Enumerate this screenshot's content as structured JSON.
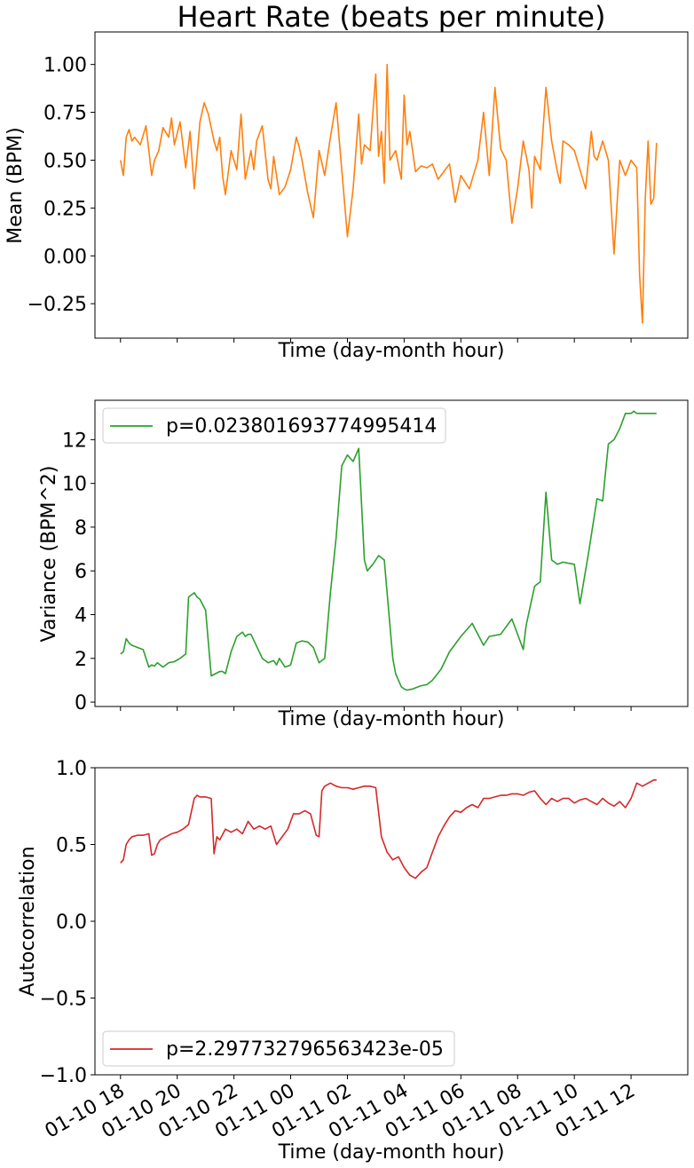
{
  "figure": {
    "title": "Heart Rate (beats per minute)",
    "shared_xlabel": "Time (day-month hour)"
  },
  "chart_data": [
    {
      "type": "line",
      "ylabel": "Mean (BPM)",
      "xlabel": "Time (day-month hour)",
      "ylim": [
        -0.43,
        1.17
      ],
      "yticks": [
        -0.25,
        0.0,
        0.25,
        0.5,
        0.75,
        1.0
      ],
      "ytick_labels": [
        "−0.25",
        "0.00",
        "0.25",
        "0.50",
        "0.75",
        "1.00"
      ],
      "xlim": [
        -0.9,
        20.0
      ],
      "x_tick_labels_shown": false,
      "grid": false,
      "legend": null,
      "series": [
        {
          "color": "#ff7f0e",
          "x": [
            0.0,
            0.1,
            0.2,
            0.3,
            0.4,
            0.5,
            0.7,
            0.9,
            1.1,
            1.2,
            1.35,
            1.5,
            1.7,
            1.8,
            1.9,
            2.1,
            2.3,
            2.45,
            2.6,
            2.8,
            2.95,
            3.1,
            3.3,
            3.4,
            3.5,
            3.6,
            3.7,
            3.9,
            4.1,
            4.25,
            4.4,
            4.6,
            4.7,
            4.8,
            5.0,
            5.2,
            5.3,
            5.4,
            5.6,
            5.8,
            6.0,
            6.2,
            6.3,
            6.4,
            6.6,
            6.8,
            7.0,
            7.2,
            7.4,
            7.6,
            7.8,
            8.0,
            8.2,
            8.4,
            8.5,
            8.6,
            8.8,
            9.0,
            9.1,
            9.2,
            9.3,
            9.4,
            9.5,
            9.7,
            9.9,
            10.0,
            10.1,
            10.2,
            10.4,
            10.6,
            10.8,
            11.0,
            11.2,
            11.4,
            11.6,
            11.8,
            12.0,
            12.3,
            12.6,
            12.8,
            13.0,
            13.2,
            13.4,
            13.6,
            13.8,
            14.0,
            14.2,
            14.4,
            14.5,
            14.6,
            14.8,
            15.0,
            15.2,
            15.4,
            15.5,
            15.6,
            15.8,
            16.0,
            16.2,
            16.4,
            16.6,
            16.7,
            16.8,
            17.0,
            17.2,
            17.4,
            17.6,
            17.8,
            18.0,
            18.2,
            18.3,
            18.4,
            18.5,
            18.6,
            18.7,
            18.8,
            18.9
          ],
          "y": [
            0.5,
            0.42,
            0.62,
            0.66,
            0.6,
            0.62,
            0.58,
            0.68,
            0.42,
            0.5,
            0.55,
            0.67,
            0.62,
            0.72,
            0.58,
            0.7,
            0.46,
            0.65,
            0.35,
            0.7,
            0.8,
            0.74,
            0.6,
            0.55,
            0.62,
            0.42,
            0.32,
            0.55,
            0.45,
            0.74,
            0.4,
            0.55,
            0.45,
            0.6,
            0.68,
            0.4,
            0.35,
            0.52,
            0.32,
            0.36,
            0.45,
            0.62,
            0.57,
            0.5,
            0.33,
            0.2,
            0.55,
            0.42,
            0.62,
            0.8,
            0.45,
            0.1,
            0.35,
            0.74,
            0.48,
            0.58,
            0.55,
            0.95,
            0.52,
            0.65,
            0.38,
            1.0,
            0.5,
            0.55,
            0.4,
            0.84,
            0.58,
            0.65,
            0.44,
            0.47,
            0.46,
            0.48,
            0.4,
            0.44,
            0.48,
            0.28,
            0.42,
            0.35,
            0.5,
            0.75,
            0.42,
            0.88,
            0.56,
            0.5,
            0.17,
            0.35,
            0.6,
            0.45,
            0.25,
            0.52,
            0.45,
            0.88,
            0.6,
            0.44,
            0.38,
            0.6,
            0.58,
            0.55,
            0.45,
            0.35,
            0.65,
            0.52,
            0.5,
            0.6,
            0.5,
            0.01,
            0.5,
            0.42,
            0.5,
            0.46,
            -0.1,
            -0.35,
            0.3,
            0.6,
            0.27,
            0.3,
            0.59
          ]
        }
      ]
    },
    {
      "type": "line",
      "ylabel": "Variance (BPM^2)",
      "xlabel": "Time (day-month hour)",
      "ylim": [
        -0.2,
        13.8
      ],
      "yticks": [
        0,
        2,
        4,
        6,
        8,
        10,
        12
      ],
      "ytick_labels": [
        "0",
        "2",
        "4",
        "6",
        "8",
        "10",
        "12"
      ],
      "xlim": [
        -0.9,
        20.0
      ],
      "x_tick_labels_shown": false,
      "grid": false,
      "legend": "upper left",
      "series": [
        {
          "name": "p=0.023801693774995414",
          "color": "#2ca02c",
          "x": [
            0.0,
            0.1,
            0.2,
            0.3,
            0.4,
            0.5,
            0.6,
            0.8,
            1.0,
            1.1,
            1.2,
            1.3,
            1.5,
            1.7,
            1.9,
            2.1,
            2.3,
            2.4,
            2.6,
            2.7,
            2.8,
            3.0,
            3.2,
            3.5,
            3.6,
            3.7,
            3.9,
            4.1,
            4.3,
            4.4,
            4.5,
            4.6,
            5.0,
            5.2,
            5.4,
            5.5,
            5.6,
            5.8,
            6.0,
            6.2,
            6.4,
            6.6,
            6.8,
            7.0,
            7.2,
            7.4,
            7.6,
            7.8,
            8.0,
            8.2,
            8.4,
            8.6,
            8.7,
            8.9,
            9.1,
            9.3,
            9.4,
            9.5,
            9.6,
            9.7,
            9.8,
            9.9,
            10.0,
            10.1,
            10.3,
            10.5,
            10.6,
            10.8,
            11.0,
            11.3,
            11.6,
            12.0,
            12.4,
            12.8,
            13.0,
            13.4,
            13.8,
            14.2,
            14.3,
            14.6,
            14.8,
            15.0,
            15.2,
            15.4,
            15.6,
            16.0,
            16.2,
            16.5,
            16.8,
            17.0,
            17.2,
            17.4,
            17.6,
            17.8,
            18.0,
            18.1,
            18.2,
            18.3,
            18.4,
            18.5,
            18.6,
            18.7,
            18.8,
            18.9
          ],
          "y": [
            2.2,
            2.3,
            2.9,
            2.7,
            2.6,
            2.55,
            2.5,
            2.4,
            1.6,
            1.7,
            1.65,
            1.8,
            1.6,
            1.8,
            1.85,
            2.0,
            2.2,
            4.8,
            5.0,
            4.8,
            4.7,
            4.2,
            1.2,
            1.4,
            1.4,
            1.3,
            2.3,
            3.0,
            3.2,
            3.0,
            3.1,
            3.1,
            2.0,
            1.8,
            1.9,
            1.7,
            2.0,
            1.6,
            1.7,
            2.7,
            2.8,
            2.75,
            2.5,
            1.8,
            2.0,
            5.0,
            7.5,
            10.8,
            11.3,
            11.0,
            11.6,
            6.5,
            6.0,
            6.3,
            6.7,
            6.5,
            5.0,
            3.5,
            2.0,
            1.3,
            1.0,
            0.7,
            0.6,
            0.55,
            0.6,
            0.7,
            0.75,
            0.8,
            1.0,
            1.5,
            2.3,
            3.0,
            3.6,
            2.6,
            3.0,
            3.1,
            3.8,
            2.4,
            3.5,
            5.3,
            5.5,
            9.6,
            6.5,
            6.3,
            6.4,
            6.3,
            4.5,
            6.8,
            9.3,
            9.2,
            11.8,
            12.0,
            12.5,
            13.2,
            13.2,
            13.3,
            13.2,
            13.2,
            13.2,
            13.2,
            13.2,
            13.2,
            13.2,
            13.2
          ]
        }
      ]
    },
    {
      "type": "line",
      "ylabel": "Autocorrelation",
      "xlabel": "Time (day-month hour)",
      "ylim": [
        -1.0,
        1.0
      ],
      "yticks": [
        -1.0,
        -0.5,
        0.0,
        0.5,
        1.0
      ],
      "ytick_labels": [
        "−1.0",
        "−0.5",
        "0.0",
        "0.5",
        "1.0"
      ],
      "xlim": [
        -0.9,
        20.0
      ],
      "x_tick_labels_shown": true,
      "x_ticks": [
        0,
        2,
        4,
        6,
        8,
        10,
        12,
        14,
        16,
        18
      ],
      "x_tick_labels": [
        "01-10 18",
        "01-10 20",
        "01-10 22",
        "01-11 00",
        "01-11 02",
        "01-11 04",
        "01-11 06",
        "01-11 08",
        "01-11 10",
        "01-11 12"
      ],
      "grid": false,
      "legend": "lower left",
      "series": [
        {
          "name": "p=2.297732796563423e-05",
          "color": "#d62728",
          "x": [
            0.0,
            0.1,
            0.2,
            0.3,
            0.4,
            0.6,
            0.8,
            1.0,
            1.1,
            1.2,
            1.3,
            1.4,
            1.6,
            1.8,
            2.0,
            2.2,
            2.4,
            2.6,
            2.7,
            2.8,
            3.0,
            3.2,
            3.3,
            3.4,
            3.5,
            3.7,
            3.9,
            4.1,
            4.3,
            4.5,
            4.7,
            4.9,
            5.1,
            5.3,
            5.5,
            5.7,
            5.9,
            6.1,
            6.3,
            6.5,
            6.7,
            6.9,
            7.0,
            7.1,
            7.2,
            7.4,
            7.6,
            7.8,
            8.0,
            8.2,
            8.4,
            8.6,
            8.8,
            9.0,
            9.2,
            9.4,
            9.6,
            9.8,
            10.0,
            10.2,
            10.4,
            10.6,
            10.8,
            11.0,
            11.2,
            11.4,
            11.6,
            11.8,
            12.0,
            12.2,
            12.4,
            12.6,
            12.8,
            13.0,
            13.2,
            13.4,
            13.6,
            13.8,
            14.0,
            14.2,
            14.4,
            14.6,
            14.8,
            15.0,
            15.2,
            15.4,
            15.6,
            15.8,
            16.0,
            16.2,
            16.4,
            16.6,
            16.8,
            17.0,
            17.2,
            17.4,
            17.6,
            17.8,
            18.0,
            18.2,
            18.4,
            18.6,
            18.8,
            18.9
          ],
          "y": [
            0.38,
            0.4,
            0.5,
            0.53,
            0.55,
            0.56,
            0.56,
            0.57,
            0.43,
            0.44,
            0.5,
            0.53,
            0.55,
            0.57,
            0.58,
            0.6,
            0.63,
            0.8,
            0.82,
            0.81,
            0.81,
            0.8,
            0.44,
            0.55,
            0.53,
            0.6,
            0.58,
            0.6,
            0.57,
            0.65,
            0.6,
            0.62,
            0.6,
            0.62,
            0.5,
            0.55,
            0.6,
            0.7,
            0.7,
            0.72,
            0.7,
            0.56,
            0.55,
            0.85,
            0.88,
            0.9,
            0.88,
            0.87,
            0.87,
            0.86,
            0.87,
            0.88,
            0.88,
            0.87,
            0.55,
            0.45,
            0.4,
            0.42,
            0.35,
            0.3,
            0.28,
            0.32,
            0.35,
            0.45,
            0.55,
            0.62,
            0.68,
            0.72,
            0.71,
            0.74,
            0.76,
            0.74,
            0.8,
            0.8,
            0.81,
            0.82,
            0.82,
            0.83,
            0.83,
            0.82,
            0.84,
            0.85,
            0.8,
            0.76,
            0.8,
            0.78,
            0.8,
            0.8,
            0.77,
            0.79,
            0.8,
            0.78,
            0.76,
            0.8,
            0.77,
            0.75,
            0.78,
            0.74,
            0.8,
            0.9,
            0.88,
            0.9,
            0.92,
            0.92
          ]
        }
      ]
    }
  ]
}
